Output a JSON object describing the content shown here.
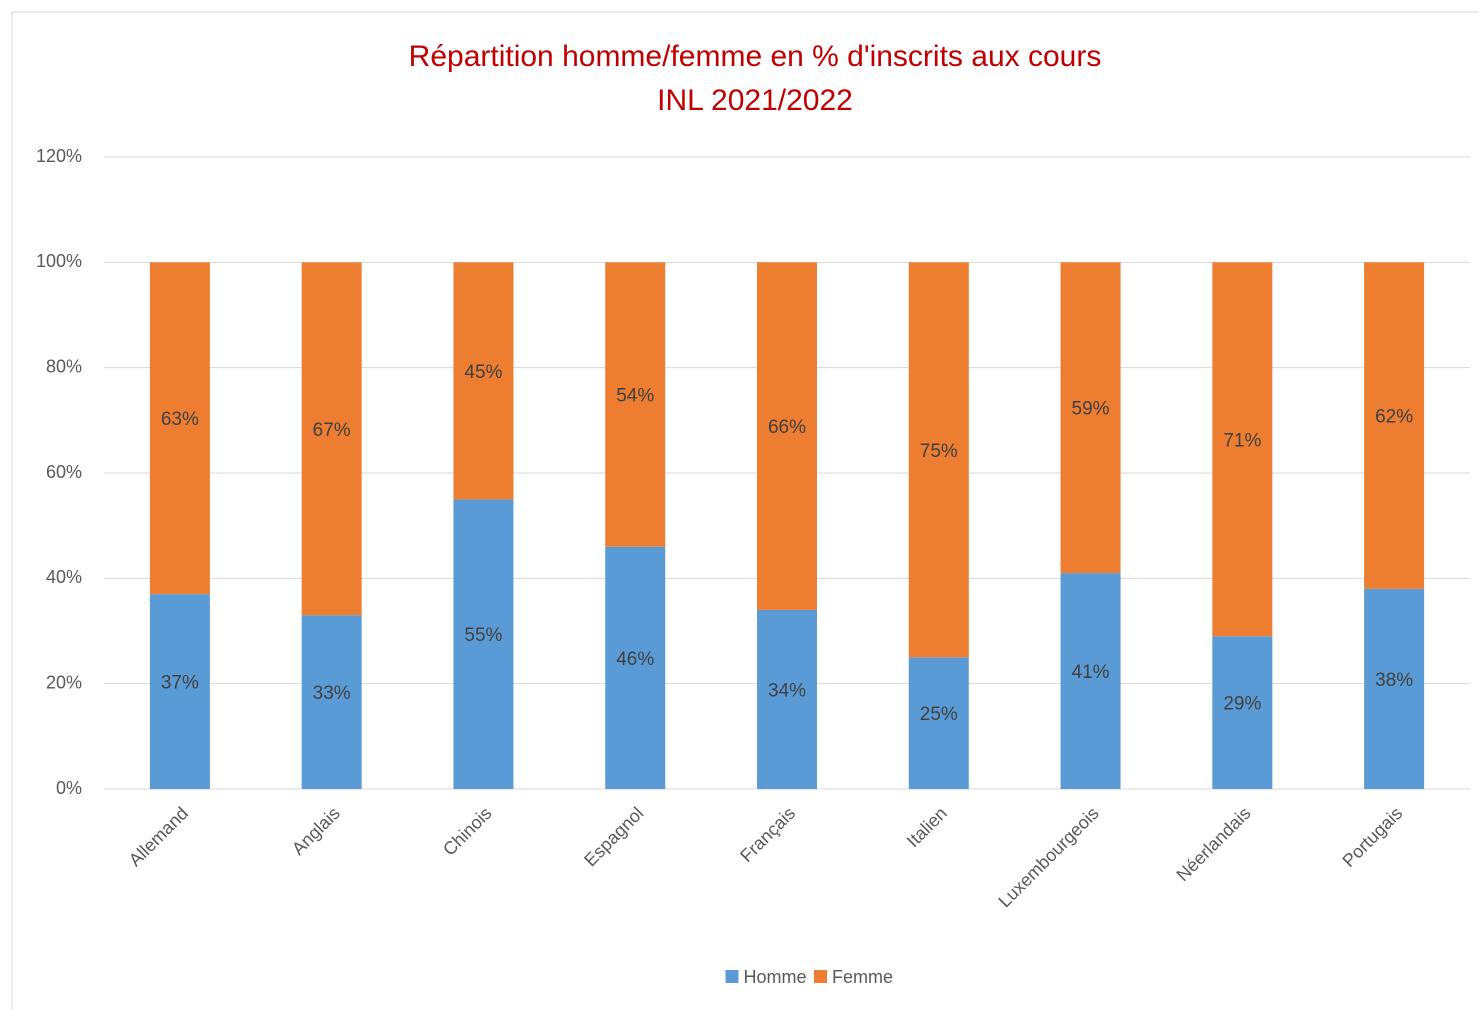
{
  "chart_data": {
    "type": "stacked_bar",
    "title": [
      "Répartition homme/femme en % d'inscrits aux cours",
      "INL 2021/2022"
    ],
    "categories": [
      "Allemand",
      "Anglais",
      "Chinois",
      "Espagnol",
      "Français",
      "Italien",
      "Luxembourgeois",
      "Néerlandais",
      "Portugais"
    ],
    "series": [
      {
        "name": "Homme",
        "color": "#5b9bd5",
        "values": [
          37,
          33,
          55,
          46,
          34,
          25,
          41,
          29,
          38
        ],
        "value_labels": [
          "37%",
          "33%",
          "55%",
          "46%",
          "34%",
          "25%",
          "41%",
          "29%",
          "38%"
        ]
      },
      {
        "name": "Femme",
        "color": "#ed7d31",
        "values": [
          63,
          67,
          45,
          54,
          66,
          75,
          59,
          71,
          62
        ],
        "value_labels": [
          "63%",
          "67%",
          "45%",
          "54%",
          "66%",
          "75%",
          "59%",
          "71%",
          "62%"
        ]
      }
    ],
    "ylim": [
      0,
      120
    ],
    "yticks": [
      {
        "value": 0,
        "label": "0%"
      },
      {
        "value": 20,
        "label": "20%"
      },
      {
        "value": 40,
        "label": "40%"
      },
      {
        "value": 60,
        "label": "60%"
      },
      {
        "value": 80,
        "label": "80%"
      },
      {
        "value": 100,
        "label": "100%"
      },
      {
        "value": 120,
        "label": "120%"
      }
    ],
    "grid": true,
    "legend": "bottom"
  }
}
